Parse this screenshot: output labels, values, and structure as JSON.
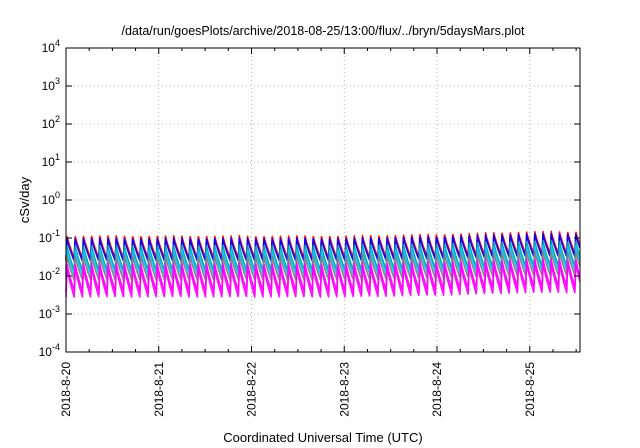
{
  "chart_data": {
    "type": "line",
    "title": "/data/run/goesPlots/archive/2018-08-25/13:00/flux/../bryn/5daysMars.plot",
    "xlabel": "Coordinated Universal Time (UTC)",
    "ylabel": "cSv/day",
    "y_scale": "log",
    "ylim": [
      0.0001,
      10000
    ],
    "xlim": [
      "2018-08-20T00:00",
      "2018-08-25T13:00"
    ],
    "x_ticks": [
      "2018-8-20",
      "2018-8-21",
      "2018-8-22",
      "2018-8-23",
      "2018-8-24",
      "2018-8-25"
    ],
    "y_ticks": [
      {
        "base": "10",
        "exp": "-4"
      },
      {
        "base": "10",
        "exp": "-3"
      },
      {
        "base": "10",
        "exp": "-2"
      },
      {
        "base": "10",
        "exp": "-1"
      },
      {
        "base": "10",
        "exp": "0"
      },
      {
        "base": "10",
        "exp": "1"
      },
      {
        "base": "10",
        "exp": "2"
      },
      {
        "base": "10",
        "exp": "3"
      },
      {
        "base": "10",
        "exp": "4"
      }
    ],
    "grid": true,
    "cycles_per_day": 11.3,
    "series": [
      {
        "color": "#ff0000",
        "peak": 0.115,
        "trough": 0.03
      },
      {
        "color": "#0000ff",
        "peak": 0.1,
        "trough": 0.025
      },
      {
        "color": "#00a0a0",
        "peak": 0.065,
        "trough": 0.014
      },
      {
        "color": "#00c8ff",
        "peak": 0.05,
        "trough": 0.011
      },
      {
        "color": "#808080",
        "peak": 0.035,
        "trough": 0.008
      },
      {
        "color": "#ff00ff",
        "peak": 0.022,
        "trough": 0.004
      },
      {
        "color": "#ff00ff",
        "peak": 0.018,
        "trough": 0.0028
      }
    ],
    "day_peak_factor": [
      1.0,
      1.0,
      1.0,
      1.0,
      1.1,
      1.3
    ]
  }
}
